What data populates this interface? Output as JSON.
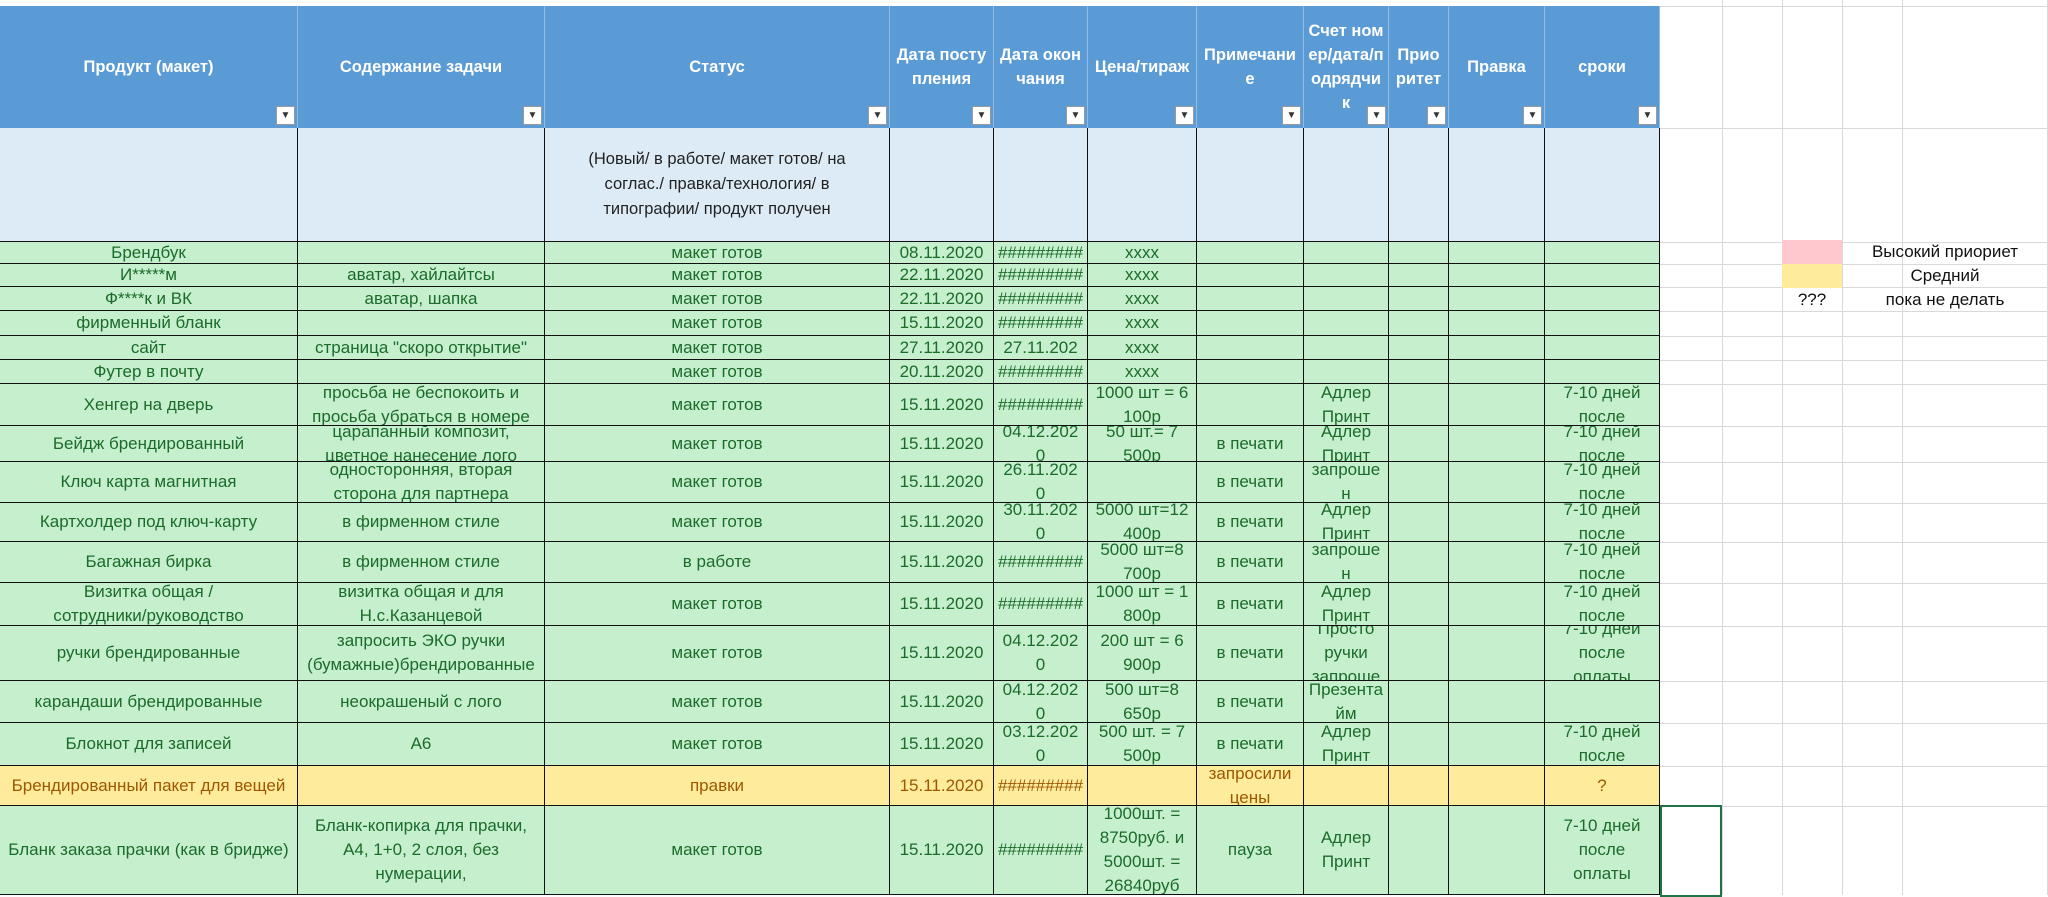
{
  "headers": [
    "Продукт (макет)",
    "Содержание задачи",
    "Статус",
    "Дата поступления",
    "Дата окончания",
    "Цена/тираж",
    "Примечание",
    "Счет номер/дата/подрядчик",
    "Приоритет",
    "Правка",
    "сроки"
  ],
  "status_hint": "(Новый/  в работе/ макет готов/ на соглас./ правка/технология/ в типографии/ продукт получен",
  "rows": [
    [
      "Брендбук",
      "",
      "макет готов",
      "08.11.2020",
      "#########",
      "xxxx",
      "",
      "",
      "",
      "",
      ""
    ],
    [
      "И*****м",
      "аватар, хайлайтсы",
      "макет готов",
      "22.11.2020",
      "#########",
      "xxxx",
      "",
      "",
      "",
      "",
      ""
    ],
    [
      "Ф****к и ВК",
      "аватар, шапка",
      "макет готов",
      "22.11.2020",
      "#########",
      "xxxx",
      "",
      "",
      "",
      "",
      ""
    ],
    [
      "фирменный бланк",
      "",
      "макет готов",
      "15.11.2020",
      "#########",
      "xxxx",
      "",
      "",
      "",
      "",
      ""
    ],
    [
      "сайт",
      "страница \"скоро открытие\"",
      "макет готов",
      "27.11.2020",
      "27.11.202",
      "xxxx",
      "",
      "",
      "",
      "",
      ""
    ],
    [
      "Футер в почту",
      "",
      "макет готов",
      "20.11.2020",
      "#########",
      "xxxx",
      "",
      "",
      "",
      "",
      ""
    ],
    [
      "Хенгер на дверь",
      "просьба не беспокоить и\nпросьба убраться в номере",
      "макет готов",
      "15.11.2020",
      "#########",
      "1000 шт = 6\n100р",
      "",
      "Адлер\nПринт",
      "",
      "",
      "7-10 дней\nпосле"
    ],
    [
      "Бейдж брендированный",
      "царапанный композит,\nцветное нанесение лого",
      "макет готов",
      "15.11.2020",
      "04.12.202\n0",
      "50 шт.= 7\n500р",
      "в печати",
      "Адлер\nПринт",
      "",
      "",
      "7-10 дней\nпосле"
    ],
    [
      "Ключ карта магнитная",
      "односторонняя, вторая\nсторона для партнера",
      "макет готов",
      "15.11.2020",
      "26.11.202\n0",
      "",
      "в печати",
      "запроше\nн",
      "",
      "",
      "7-10 дней\nпосле"
    ],
    [
      "Картхолдер под ключ-карту",
      "в фирменном стиле",
      "макет готов",
      "15.11.2020",
      "30.11.202\n0",
      "5000 шт=12\n400р",
      "в печати",
      "Адлер\nПринт",
      "",
      "",
      "7-10 дней\nпосле"
    ],
    [
      "Багажная бирка",
      "в фирменном стиле",
      "в работе",
      "15.11.2020",
      "#########",
      "5000 шт=8\n700р",
      "в печати",
      "запроше\nн",
      "",
      "",
      "7-10 дней\nпосле"
    ],
    [
      "Визитка  общая /\nсотрудники/руководство",
      "визитка общая и для\nН.с.Казанцевой",
      "макет готов",
      "15.11.2020",
      "#########",
      "1000 шт = 1\n800р",
      "в печати",
      "Адлер\nПринт",
      "",
      "",
      "7-10 дней\nпосле"
    ],
    [
      "ручки брендированные",
      "запросить ЭКО ручки\n(бумажные)брендированные",
      "макет готов",
      "15.11.2020",
      "04.12.202\n0",
      "200 шт = 6\n900р",
      "в печати",
      "Просто\nручки\nзапроше",
      "",
      "",
      "7-10 дней\nпосле\nоплаты"
    ],
    [
      "карандаши брендированные",
      "неокрашеный с лого",
      "макет готов",
      "15.11.2020",
      "04.12.202\n0",
      "500 шт=8\n650р",
      "в печати",
      "Презента\nйм",
      "",
      "",
      ""
    ],
    [
      "Блокнот для записей",
      "А6",
      "макет готов",
      "15.11.2020",
      "03.12.202\n0",
      "500 шт. = 7\n500р",
      "в печати",
      "Адлер\nПринт",
      "",
      "",
      "7-10 дней\nпосле"
    ],
    [
      "Брендированный пакет для вещей",
      "",
      "правки",
      "15.11.2020",
      "#########",
      "",
      "запросили\nцены",
      "",
      "",
      "",
      "?"
    ],
    [
      "Бланк заказа прачки (как в бридже)",
      "Бланк-копирка для прачки,\nА4, 1+0, 2 слоя, без\nнумерации,",
      "макет готов",
      "15.11.2020",
      "#########",
      "1000шт. =\n8750руб. и\n5000шт. =\n26840руб",
      "пауза",
      "Адлер\nПринт",
      "",
      "",
      "7-10 дней\nпосле\nоплаты"
    ]
  ],
  "legend": [
    {
      "marker": "",
      "label": "Высокий приориет",
      "color": "#ffc7ce"
    },
    {
      "marker": "",
      "label": "Средний",
      "color": "#ffeb9c"
    },
    {
      "marker": "???",
      "label": "пока не делать",
      "color": ""
    }
  ],
  "filter_icon": "dropdown-arrow-icon",
  "colors": {
    "header": "#5b9bd5",
    "row_green": "#c6efce",
    "row_yellow": "#ffeb9c",
    "hint": "#ddebf7"
  }
}
